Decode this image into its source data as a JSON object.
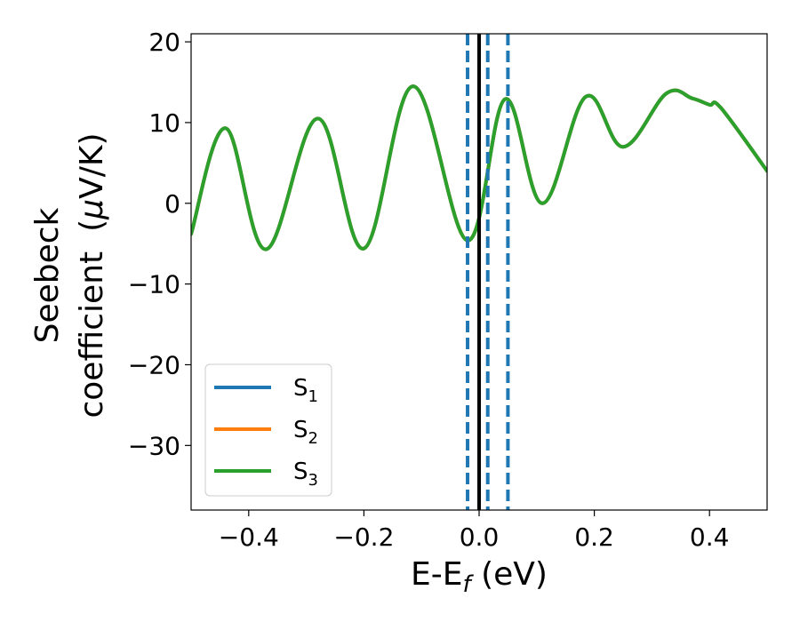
{
  "chart_data": {
    "type": "line",
    "xlabel": "E-E",
    "xlabel_sub": "f",
    "xlabel_unit": " (eV)",
    "ylabel_line1": "Seebeck",
    "ylabel_line2": "coefficient",
    "ylabel_unit_prefix": "(",
    "ylabel_unit_mu": "μ",
    "ylabel_unit_rest": "V/K)",
    "xlim": [
      -0.5,
      0.5
    ],
    "ylim": [
      -38,
      21
    ],
    "xticks": [
      -0.4,
      -0.2,
      0.0,
      0.2,
      0.4
    ],
    "xtick_labels": [
      "−0.4",
      "−0.2",
      "0.0",
      "0.2",
      "0.4"
    ],
    "yticks": [
      20,
      10,
      0,
      -10,
      -20,
      -30
    ],
    "ytick_labels": [
      "20",
      "10",
      "0",
      "−10",
      "−20",
      "−30"
    ],
    "grid": false,
    "legend_position": "lower-left",
    "series": [
      {
        "name": "S",
        "name_sub": "1",
        "color": "#1f77b4",
        "x": [
          -0.5,
          -0.44,
          -0.37,
          -0.28,
          -0.2,
          -0.115,
          -0.02,
          0.045,
          0.11,
          0.185,
          0.25,
          0.325,
          0.37,
          0.4,
          0.42,
          0.5
        ],
        "y": [
          -3.8,
          9.3,
          -5.7,
          10.5,
          -5.6,
          14.5,
          -4.6,
          12.9,
          0.0,
          13.2,
          7.0,
          13.6,
          13.0,
          12.2,
          11.8,
          4.0
        ]
      },
      {
        "name": "S",
        "name_sub": "2",
        "color": "#ff7f0e",
        "x": [
          -0.5,
          -0.44,
          -0.37,
          -0.28,
          -0.2,
          -0.115,
          -0.02,
          0.045,
          0.11,
          0.185,
          0.25,
          0.325,
          0.37,
          0.4,
          0.42,
          0.5
        ],
        "y": [
          -3.8,
          9.3,
          -5.7,
          10.5,
          -5.6,
          14.5,
          -4.6,
          12.9,
          0.0,
          13.2,
          7.0,
          13.6,
          13.0,
          12.2,
          11.8,
          4.0
        ]
      },
      {
        "name": "S",
        "name_sub": "3",
        "color": "#2ca02c",
        "x": [
          -0.5,
          -0.44,
          -0.37,
          -0.28,
          -0.2,
          -0.115,
          -0.02,
          0.045,
          0.11,
          0.185,
          0.25,
          0.325,
          0.37,
          0.4,
          0.42,
          0.5
        ],
        "y": [
          -3.8,
          9.3,
          -5.7,
          10.5,
          -5.6,
          14.5,
          -4.6,
          12.9,
          0.0,
          13.2,
          7.0,
          13.6,
          13.0,
          12.2,
          11.8,
          4.0
        ]
      }
    ],
    "vlines": [
      {
        "x": -0.02,
        "style": "dashed",
        "color": "#1f77b4"
      },
      {
        "x": 0.015,
        "style": "dashed",
        "color": "#1f77b4"
      },
      {
        "x": 0.05,
        "style": "dashed",
        "color": "#1f77b4"
      },
      {
        "x": 0.0,
        "style": "solid",
        "color": "#000000"
      }
    ]
  }
}
